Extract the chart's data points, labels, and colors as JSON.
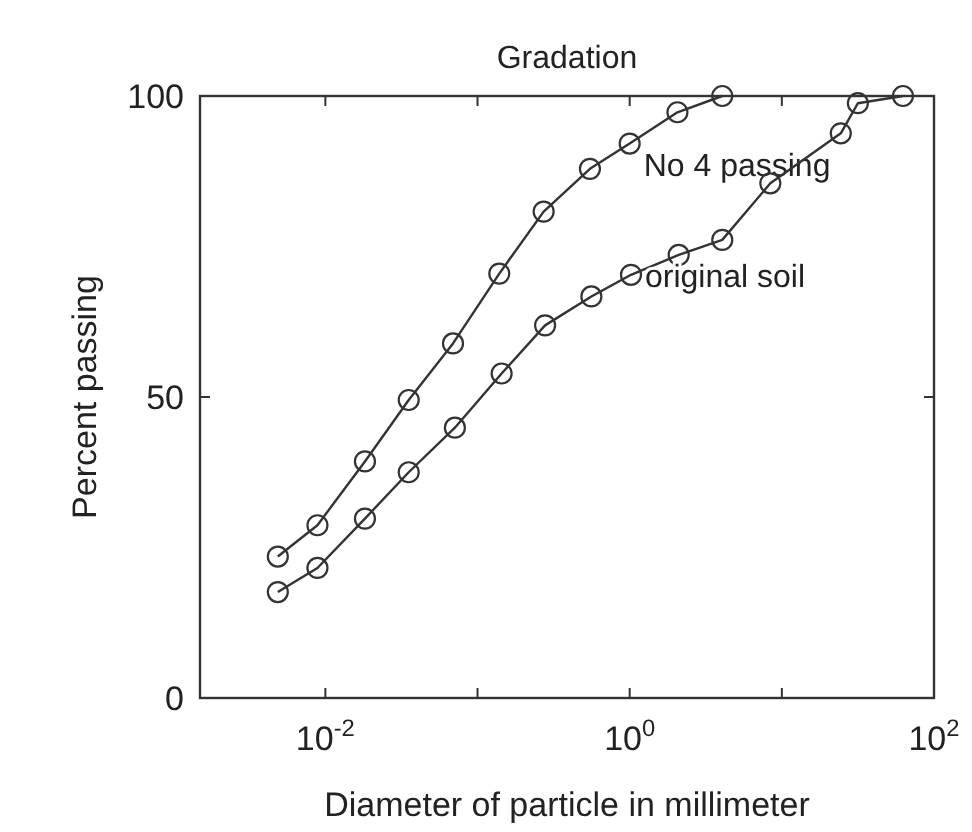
{
  "chart_data": {
    "type": "line",
    "title": "Gradation",
    "xlabel": "Diameter of particle in millimeter",
    "ylabel": "Percent passing",
    "log": "x",
    "grid": false,
    "marker": "circle",
    "line_style": "solid",
    "xlim": [
      0.0015,
      100
    ],
    "xticks": [
      {
        "value": 0.01,
        "label": "10$^{-2}$"
      },
      {
        "value": 0.1,
        "label": null
      },
      {
        "value": 1,
        "label": "10$^{0}$"
      },
      {
        "value": 10,
        "label": null
      },
      {
        "value": 100,
        "label": "10$^{2}$"
      }
    ],
    "ylim": [
      0,
      100
    ],
    "yticks": [
      0,
      50,
      100
    ],
    "series": [
      {
        "name": "No 4 passing",
        "color": "#333333",
        "x": [
          0.00487,
          0.00887,
          0.0182,
          0.0353,
          0.069,
          0.139,
          0.272,
          0.548,
          1.0,
          2.06,
          4.06
        ],
        "values": [
          23.5,
          28.7,
          39.3,
          49.5,
          58.9,
          70.5,
          80.8,
          87.9,
          92.1,
          97.3,
          100
        ]
      },
      {
        "name": "original soil",
        "color": "#333333",
        "x": [
          0.00487,
          0.00887,
          0.0182,
          0.0353,
          0.071,
          0.144,
          0.278,
          0.56,
          1.02,
          2.1,
          4.06,
          8.4,
          24.4,
          31.6,
          62.5
        ],
        "values": [
          17.6,
          21.6,
          29.8,
          37.5,
          44.9,
          53.9,
          61.9,
          66.7,
          70.3,
          73.6,
          76.1,
          85.5,
          93.8,
          98.8,
          100
        ]
      }
    ]
  }
}
